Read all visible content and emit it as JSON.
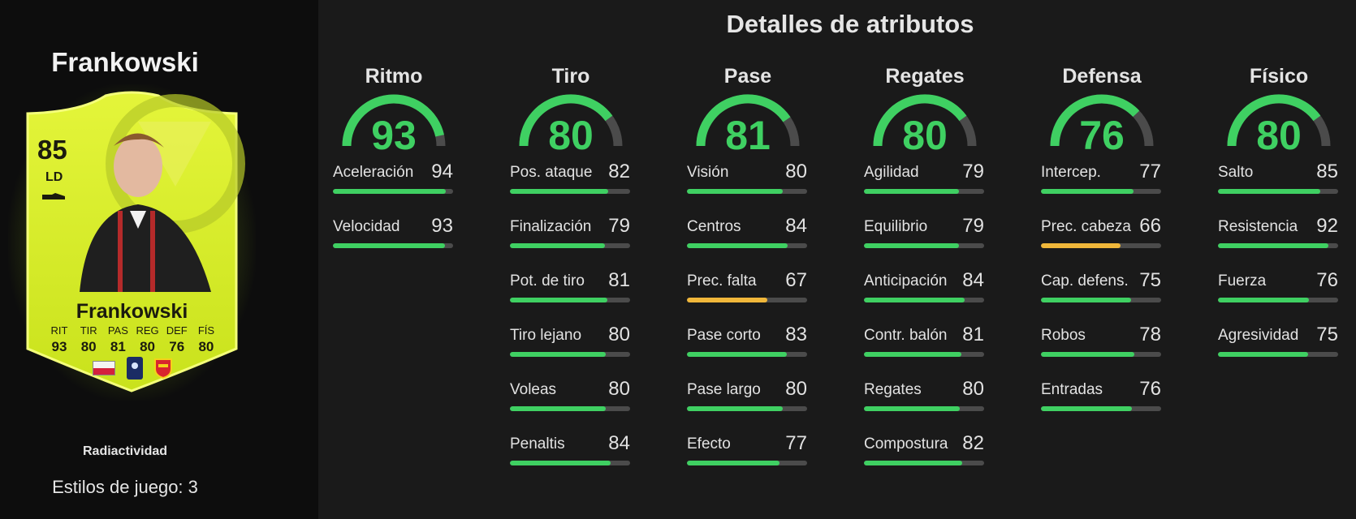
{
  "player": {
    "name": "Frankowski",
    "rating": "85",
    "position": "LD",
    "card_name": "Frankowski",
    "card_stats": [
      {
        "label": "RIT",
        "value": "93"
      },
      {
        "label": "TIR",
        "value": "80"
      },
      {
        "label": "PAS",
        "value": "81"
      },
      {
        "label": "REG",
        "value": "80"
      },
      {
        "label": "DEF",
        "value": "76"
      },
      {
        "label": "FÍS",
        "value": "80"
      }
    ],
    "card_type": "Radiactividad",
    "playstyles": "Estilos de juego: 3",
    "nation_icon": "poland-flag-icon",
    "league_icon": "ligue1-logo-icon",
    "club_icon": "rc-lens-crest-icon"
  },
  "colors": {
    "good": "#3fd062",
    "average": "#f0b73a",
    "track": "#4b4b4b",
    "card": "#d7f030"
  },
  "attributes": {
    "title": "Detalles de atributos",
    "groups": [
      {
        "name": "Ritmo",
        "value": 93,
        "stats": [
          {
            "label": "Aceleración",
            "value": 94
          },
          {
            "label": "Velocidad",
            "value": 93
          }
        ]
      },
      {
        "name": "Tiro",
        "value": 80,
        "stats": [
          {
            "label": "Pos. ataque",
            "value": 82
          },
          {
            "label": "Finalización",
            "value": 79
          },
          {
            "label": "Pot. de tiro",
            "value": 81
          },
          {
            "label": "Tiro lejano",
            "value": 80
          },
          {
            "label": "Voleas",
            "value": 80
          },
          {
            "label": "Penaltis",
            "value": 84
          }
        ]
      },
      {
        "name": "Pase",
        "value": 81,
        "stats": [
          {
            "label": "Visión",
            "value": 80
          },
          {
            "label": "Centros",
            "value": 84
          },
          {
            "label": "Prec. falta",
            "value": 67
          },
          {
            "label": "Pase corto",
            "value": 83
          },
          {
            "label": "Pase largo",
            "value": 80
          },
          {
            "label": "Efecto",
            "value": 77
          }
        ]
      },
      {
        "name": "Regates",
        "value": 80,
        "stats": [
          {
            "label": "Agilidad",
            "value": 79
          },
          {
            "label": "Equilibrio",
            "value": 79
          },
          {
            "label": "Anticipación",
            "value": 84
          },
          {
            "label": "Contr. balón",
            "value": 81
          },
          {
            "label": "Regates",
            "value": 80
          },
          {
            "label": "Compostura",
            "value": 82
          }
        ]
      },
      {
        "name": "Defensa",
        "value": 76,
        "stats": [
          {
            "label": "Intercep.",
            "value": 77
          },
          {
            "label": "Prec. cabeza",
            "value": 66
          },
          {
            "label": "Cap. defens.",
            "value": 75
          },
          {
            "label": "Robos",
            "value": 78
          },
          {
            "label": "Entradas",
            "value": 76
          }
        ]
      },
      {
        "name": "Físico",
        "value": 80,
        "stats": [
          {
            "label": "Salto",
            "value": 85
          },
          {
            "label": "Resistencia",
            "value": 92
          },
          {
            "label": "Fuerza",
            "value": 76
          },
          {
            "label": "Agresividad",
            "value": 75
          }
        ]
      }
    ]
  }
}
